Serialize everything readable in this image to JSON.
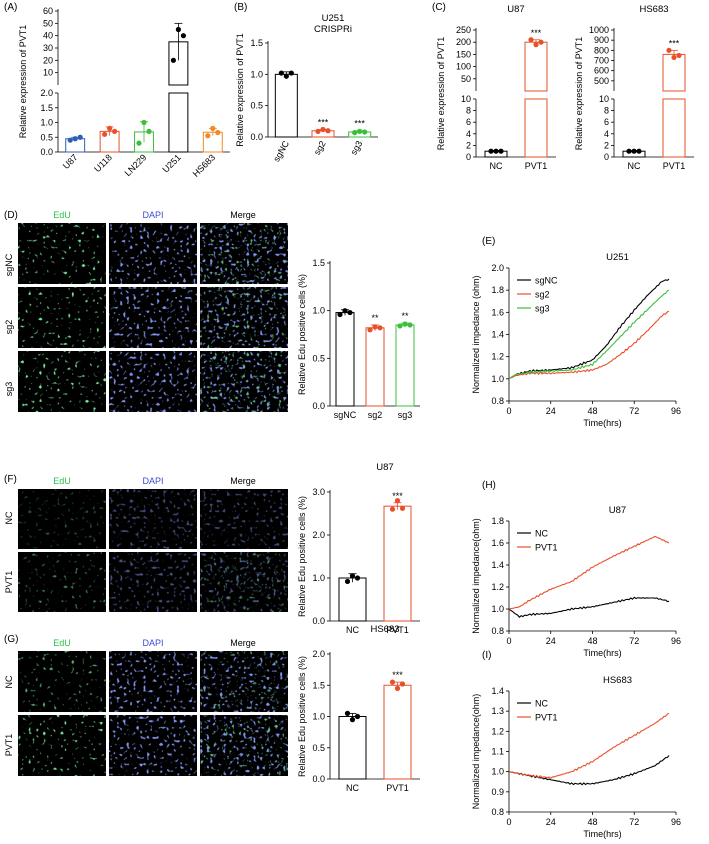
{
  "panel_labels": [
    "(A)",
    "(B)",
    "(C)",
    "(D)",
    "(E)",
    "(F)",
    "(G)",
    "(H)",
    "(I)"
  ],
  "micro_headers": [
    "EdU",
    "DAPI",
    "Merge"
  ],
  "micro_row_labels": {
    "D": [
      "sgNC",
      "sg2",
      "sg3"
    ],
    "F": [
      "NC",
      "PVT1"
    ],
    "G": [
      "NC",
      "PVT1"
    ]
  },
  "colors": {
    "sgNC": "#000000",
    "sg2": "#e8502a",
    "sg3": "#3bbf3b",
    "NC": "#000000",
    "PVT1": "#e8502a",
    "U87": "#2f5fb3",
    "U118": "#e8502a",
    "LN229": "#3bbf3b",
    "U251": "#000000",
    "HS683": "#f08a24",
    "edu": "#27c24a",
    "dapi": "#3a4bd4"
  },
  "chart_data": [
    {
      "id": "A",
      "type": "bar",
      "title": "",
      "ylabel": "Relative expression of PVT1",
      "categories": [
        "U87",
        "U118",
        "LN229",
        "U251",
        "HS683"
      ],
      "values": [
        0.45,
        0.7,
        0.68,
        35,
        0.67
      ],
      "errors": [
        0.05,
        0.15,
        0.35,
        15,
        0.12
      ],
      "points": [
        [
          0.4,
          0.45,
          0.5
        ],
        [
          0.6,
          0.8,
          0.7
        ],
        [
          0.3,
          1.0,
          0.7
        ],
        [
          20,
          45,
          40
        ],
        [
          0.55,
          0.8,
          0.66
        ]
      ],
      "broken_axis": true,
      "lower_ticks": [
        "0.0",
        "0.5",
        "1.0",
        "1.5",
        "2.0"
      ],
      "upper_ticks": [
        "10",
        "20",
        "30",
        "40",
        "50",
        "60"
      ]
    },
    {
      "id": "B",
      "type": "bar",
      "title": "U251\nCRISPRi",
      "ylabel": "Relative expression of PVT1",
      "categories": [
        "sgNC",
        "sg2",
        "sg3"
      ],
      "values": [
        1.0,
        0.1,
        0.08
      ],
      "errors": [
        0.04,
        0.02,
        0.02
      ],
      "points": [
        [
          1.02,
          0.97,
          1.02
        ],
        [
          0.09,
          0.12,
          0.1
        ],
        [
          0.07,
          0.09,
          0.08
        ]
      ],
      "ylim": [
        0,
        1.5
      ],
      "yticks": [
        "0.0",
        "0.5",
        "1.0",
        "1.5"
      ],
      "significance": [
        "",
        "***",
        "***"
      ]
    },
    {
      "id": "C1",
      "type": "bar",
      "title": "U87",
      "ylabel": "Relative expression of PVT1",
      "categories": [
        "NC",
        "PVT1"
      ],
      "values": [
        1.0,
        200
      ],
      "errors": [
        0.1,
        10
      ],
      "points": [
        [
          1.0,
          1.0,
          1.0
        ],
        [
          210,
          190,
          200
        ]
      ],
      "broken_axis": true,
      "lower_ticks": [
        "0",
        "2",
        "4",
        "6",
        "8",
        "10"
      ],
      "upper_ticks": [
        "50",
        "100",
        "150",
        "200",
        "250"
      ],
      "significance": [
        "",
        "***"
      ]
    },
    {
      "id": "C2",
      "type": "bar",
      "title": "HS683",
      "ylabel": "Relative expression of PVT1",
      "categories": [
        "NC",
        "PVT1"
      ],
      "values": [
        1.0,
        760
      ],
      "errors": [
        0.1,
        40
      ],
      "points": [
        [
          1.0,
          1.0,
          1.0
        ],
        [
          800,
          730,
          750
        ]
      ],
      "broken_axis": true,
      "lower_ticks": [
        "0",
        "2",
        "4",
        "6",
        "8",
        "10"
      ],
      "upper_ticks": [
        "500",
        "600",
        "700",
        "800",
        "900",
        "1000"
      ],
      "significance": [
        "",
        "***"
      ]
    },
    {
      "id": "D",
      "type": "bar",
      "title": "",
      "ylabel": "Relative Edu positive cells (%)",
      "categories": [
        "sgNC",
        "sg2",
        "sg3"
      ],
      "values": [
        0.98,
        0.82,
        0.85
      ],
      "errors": [
        0.03,
        0.03,
        0.02
      ],
      "points": [
        [
          0.96,
          1.0,
          0.98
        ],
        [
          0.8,
          0.83,
          0.82
        ],
        [
          0.84,
          0.86,
          0.85
        ]
      ],
      "ylim": [
        0,
        1.5
      ],
      "yticks": [
        "0.0",
        "0.5",
        "1.0",
        "1.5"
      ],
      "significance": [
        "",
        "**",
        "**"
      ]
    },
    {
      "id": "F",
      "type": "bar",
      "title": "U87",
      "ylabel": "Relative Edu positive cells (%)",
      "categories": [
        "NC",
        "PVT1"
      ],
      "values": [
        1.0,
        2.67
      ],
      "errors": [
        0.1,
        0.08
      ],
      "points": [
        [
          0.92,
          1.05,
          1.0
        ],
        [
          2.6,
          2.8,
          2.62
        ]
      ],
      "ylim": [
        0,
        3.0
      ],
      "yticks": [
        "0.0",
        "1.0",
        "2.0",
        "3.0"
      ],
      "significance": [
        "",
        "***"
      ]
    },
    {
      "id": "G",
      "type": "bar",
      "title": "HS683",
      "ylabel": "Relative Edu positive cells (%)",
      "categories": [
        "NC",
        "PVT1"
      ],
      "values": [
        1.0,
        1.5
      ],
      "errors": [
        0.05,
        0.05
      ],
      "points": [
        [
          1.05,
          0.95,
          1.0
        ],
        [
          1.55,
          1.45,
          1.52
        ]
      ],
      "ylim": [
        0,
        2.0
      ],
      "yticks": [
        "0.0",
        "0.5",
        "1.0",
        "1.5",
        "2.0"
      ],
      "significance": [
        "",
        "***"
      ]
    },
    {
      "id": "E",
      "type": "line",
      "title": "U251",
      "xlabel": "Time(hrs)",
      "ylabel": "Normalized impedance (ohm)",
      "xlim": [
        0,
        96
      ],
      "ylim": [
        0.8,
        2.0
      ],
      "xticks": [
        "0",
        "24",
        "48",
        "72",
        "96"
      ],
      "yticks": [
        "0.8",
        "1.0",
        "1.2",
        "1.4",
        "1.6",
        "1.8",
        "2.0"
      ],
      "legend": "top-left",
      "x": [
        0,
        4,
        12,
        24,
        36,
        48,
        56,
        64,
        72,
        80,
        88,
        92
      ],
      "series": [
        {
          "name": "sgNC",
          "values": [
            1.0,
            1.04,
            1.07,
            1.08,
            1.1,
            1.17,
            1.3,
            1.47,
            1.62,
            1.76,
            1.88,
            1.9
          ]
        },
        {
          "name": "sg2",
          "values": [
            1.0,
            1.03,
            1.05,
            1.05,
            1.06,
            1.08,
            1.13,
            1.22,
            1.32,
            1.44,
            1.57,
            1.61
          ]
        },
        {
          "name": "sg3",
          "values": [
            1.0,
            1.04,
            1.06,
            1.07,
            1.08,
            1.13,
            1.25,
            1.38,
            1.51,
            1.63,
            1.75,
            1.8
          ]
        }
      ]
    },
    {
      "id": "H",
      "type": "line",
      "title": "U87",
      "xlabel": "Time(hrs)",
      "ylabel": "Normalized impedance(ohm)",
      "xlim": [
        0,
        96
      ],
      "ylim": [
        0.8,
        1.8
      ],
      "xticks": [
        "0",
        "24",
        "48",
        "72",
        "96"
      ],
      "yticks": [
        "0.8",
        "1.0",
        "1.2",
        "1.4",
        "1.6",
        "1.8"
      ],
      "legend": "top-left",
      "x": [
        0,
        6,
        12,
        24,
        36,
        48,
        60,
        72,
        84,
        92
      ],
      "series": [
        {
          "name": "NC",
          "values": [
            1.0,
            0.93,
            0.95,
            0.96,
            1.0,
            1.02,
            1.06,
            1.1,
            1.1,
            1.07
          ]
        },
        {
          "name": "PVT1",
          "values": [
            1.0,
            1.02,
            1.08,
            1.18,
            1.25,
            1.38,
            1.48,
            1.57,
            1.66,
            1.6
          ]
        }
      ]
    },
    {
      "id": "I",
      "type": "line",
      "title": "HS683",
      "xlabel": "Time(hrs)",
      "ylabel": "Normalized impedance(ohm)",
      "xlim": [
        0,
        96
      ],
      "ylim": [
        0.8,
        1.4
      ],
      "xticks": [
        "0",
        "24",
        "48",
        "72",
        "96"
      ],
      "yticks": [
        "0.8",
        "0.9",
        "1.0",
        "1.1",
        "1.2",
        "1.3",
        "1.4"
      ],
      "legend": "top-left",
      "x": [
        0,
        12,
        24,
        36,
        48,
        60,
        72,
        84,
        92
      ],
      "series": [
        {
          "name": "NC",
          "values": [
            1.0,
            0.98,
            0.96,
            0.94,
            0.94,
            0.96,
            0.99,
            1.03,
            1.08
          ]
        },
        {
          "name": "PVT1",
          "values": [
            1.0,
            0.98,
            0.97,
            1.0,
            1.05,
            1.12,
            1.18,
            1.24,
            1.29
          ]
        }
      ]
    }
  ]
}
